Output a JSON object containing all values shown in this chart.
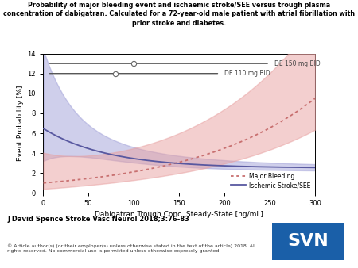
{
  "title_line1": "Probability of major bleeding event and ischaemic stroke/SEE versus trough plasma",
  "title_line2": "concentration of dabigatran. Calculated for a 72-year-old male patient with atrial fibrillation with",
  "title_line3": "prior stroke and diabetes.",
  "xlabel": "Dabigatran Trough Conc. Steady-State [ng/mL]",
  "ylabel": "Event Probability [%]",
  "xlim": [
    0,
    300
  ],
  "ylim": [
    0,
    14
  ],
  "yticks": [
    0,
    2,
    4,
    6,
    8,
    10,
    12,
    14
  ],
  "xticks": [
    0,
    50,
    100,
    150,
    200,
    250,
    300
  ],
  "bleeding_fill_color": "#e8a0a0",
  "bleeding_line_color": "#c87070",
  "ischemic_fill_color": "#a0a0d8",
  "ischemic_line_color": "#5858a0",
  "de150_y": 13.0,
  "de110_y": 12.0,
  "fill_alpha": 0.5,
  "journal_text": "J David Spence Stroke Vasc Neurol 2018;3:76-83",
  "copyright_text": "© Article author(s) (or their employer(s) unless otherwise stated in the text of the article) 2018. All\nrights reserved. No commercial use is permitted unless otherwise expressly granted.",
  "svn_bg": "#1a5fa8",
  "svn_text": "SVN"
}
